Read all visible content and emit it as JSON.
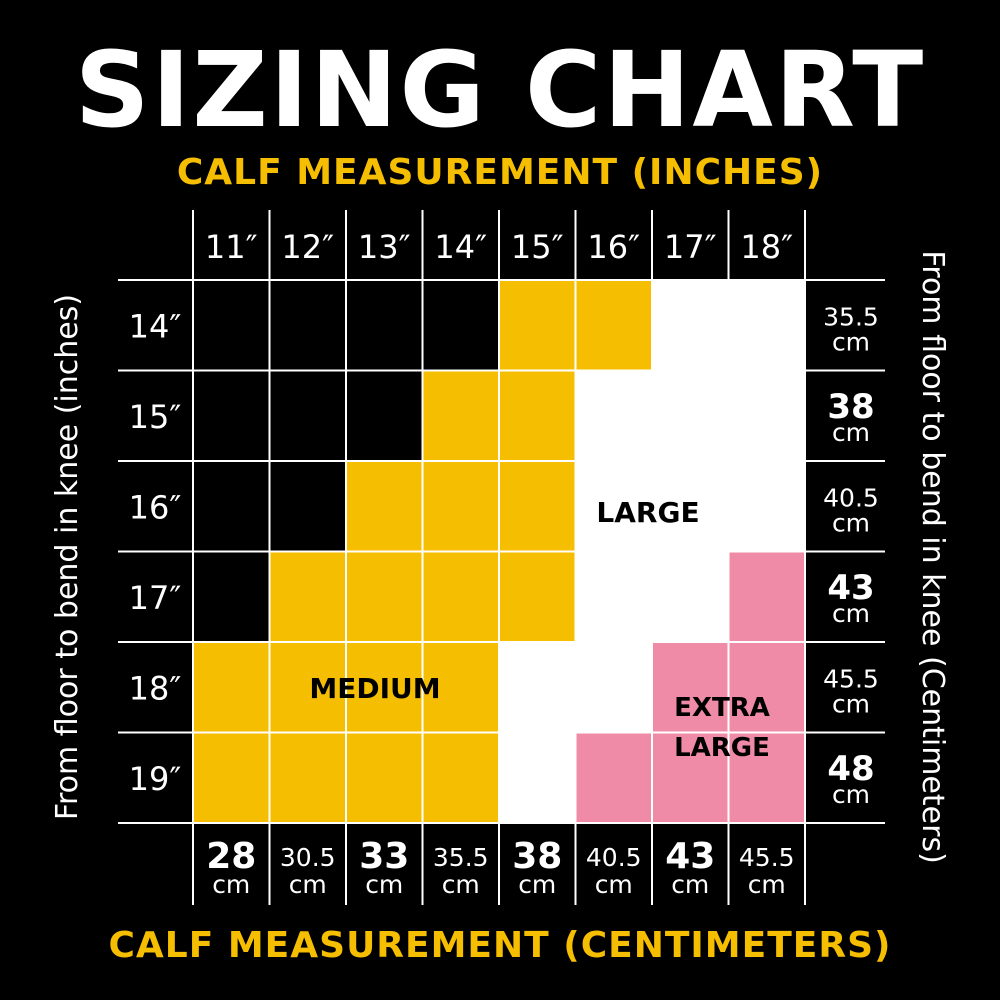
{
  "title": "SIZING CHART",
  "subtitle_top": "CALF MEASUREMENT (INCHES)",
  "subtitle_bottom": "CALF MEASUREMENT (CENTIMETERS)",
  "left_axis_label": "From floor to bend in knee (inches)",
  "right_axis_label": "From floor to bend in knee (Centimeters)",
  "colors": {
    "background": "#000000",
    "medium": "#F6BE00",
    "large": "#FFFFFF",
    "extra_large": "#F08BA7",
    "grid": "#FFFFFF",
    "accent_text": "#F6BE00"
  },
  "chart_data": {
    "type": "table",
    "columns_inches": [
      "11″",
      "12″",
      "13″",
      "14″",
      "15″",
      "16″",
      "17″",
      "18″"
    ],
    "columns_cm": [
      {
        "value": "28",
        "unit": "cm"
      },
      {
        "value": "30.5",
        "unit": "cm"
      },
      {
        "value": "33",
        "unit": "cm"
      },
      {
        "value": "35.5",
        "unit": "cm"
      },
      {
        "value": "38",
        "unit": "cm"
      },
      {
        "value": "40.5",
        "unit": "cm"
      },
      {
        "value": "43",
        "unit": "cm"
      },
      {
        "value": "45.5",
        "unit": "cm"
      }
    ],
    "rows_inches": [
      "14″",
      "15″",
      "16″",
      "17″",
      "18″",
      "19″"
    ],
    "rows_cm": [
      {
        "value": "35.5",
        "unit": "cm"
      },
      {
        "value": "38",
        "unit": "cm"
      },
      {
        "value": "40.5",
        "unit": "cm"
      },
      {
        "value": "43",
        "unit": "cm"
      },
      {
        "value": "45.5",
        "unit": "cm"
      },
      {
        "value": "48",
        "unit": "cm"
      }
    ],
    "cells": [
      [
        "none",
        "none",
        "none",
        "none",
        "medium",
        "medium",
        "large",
        "large"
      ],
      [
        "none",
        "none",
        "none",
        "medium",
        "medium",
        "large",
        "large",
        "large"
      ],
      [
        "none",
        "none",
        "medium",
        "medium",
        "medium",
        "large",
        "large",
        "large"
      ],
      [
        "none",
        "medium",
        "medium",
        "medium",
        "medium",
        "large",
        "large",
        "extra_large"
      ],
      [
        "medium",
        "medium",
        "medium",
        "medium",
        "large",
        "large",
        "extra_large",
        "extra_large"
      ],
      [
        "medium",
        "medium",
        "medium",
        "medium",
        "large",
        "extra_large",
        "extra_large",
        "extra_large"
      ]
    ],
    "region_labels": {
      "medium": [
        "MEDIUM"
      ],
      "large": [
        "LARGE"
      ],
      "extra_large": [
        "EXTRA",
        "LARGE"
      ]
    }
  }
}
